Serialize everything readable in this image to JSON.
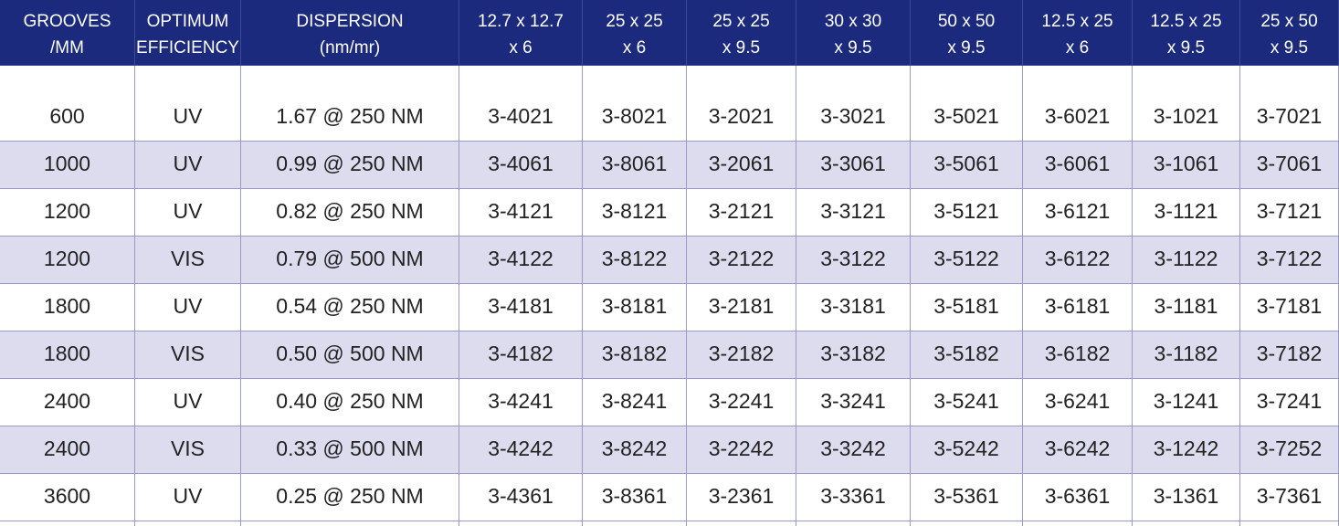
{
  "table": {
    "header": [
      [
        "GROOVES",
        "/MM"
      ],
      [
        "OPTIMUM",
        "EFFICIENCY"
      ],
      [
        "DISPERSION",
        "(nm/mr)"
      ],
      [
        "12.7 x 12.7",
        "x 6"
      ],
      [
        "25 x 25",
        "x 6"
      ],
      [
        "25 x 25",
        "x 9.5"
      ],
      [
        "30 x 30",
        "x 9.5"
      ],
      [
        "50 x 50",
        "x 9.5"
      ],
      [
        "12.5 x 25",
        "x 6"
      ],
      [
        "12.5 x 25",
        "x 9.5"
      ],
      [
        "25 x 50",
        "x 9.5"
      ]
    ],
    "rows": [
      [
        "600",
        "UV",
        "1.67 @ 250 NM",
        "3-4021",
        "3-8021",
        "3-2021",
        "3-3021",
        "3-5021",
        "3-6021",
        "3-1021",
        "3-7021"
      ],
      [
        "1000",
        "UV",
        "0.99 @ 250 NM",
        "3-4061",
        "3-8061",
        "3-2061",
        "3-3061",
        "3-5061",
        "3-6061",
        "3-1061",
        "3-7061"
      ],
      [
        "1200",
        "UV",
        "0.82 @ 250 NM",
        "3-4121",
        "3-8121",
        "3-2121",
        "3-3121",
        "3-5121",
        "3-6121",
        "3-1121",
        "3-7121"
      ],
      [
        "1200",
        "VIS",
        "0.79 @ 500 NM",
        "3-4122",
        "3-8122",
        "3-2122",
        "3-3122",
        "3-5122",
        "3-6122",
        "3-1122",
        "3-7122"
      ],
      [
        "1800",
        "UV",
        "0.54 @ 250 NM",
        "3-4181",
        "3-8181",
        "3-2181",
        "3-3181",
        "3-5181",
        "3-6181",
        "3-1181",
        "3-7181"
      ],
      [
        "1800",
        "VIS",
        "0.50 @ 500 NM",
        "3-4182",
        "3-8182",
        "3-2182",
        "3-3182",
        "3-5182",
        "3-6182",
        "3-1182",
        "3-7182"
      ],
      [
        "2400",
        "UV",
        "0.40 @ 250 NM",
        "3-4241",
        "3-8241",
        "3-2241",
        "3-3241",
        "3-5241",
        "3-6241",
        "3-1241",
        "3-7241"
      ],
      [
        "2400",
        "VIS",
        "0.33 @ 500 NM",
        "3-4242",
        "3-8242",
        "3-2242",
        "3-3242",
        "3-5242",
        "3-6242",
        "3-1242",
        "3-7252"
      ],
      [
        "3600",
        "UV",
        "0.25 @ 250 NM",
        "3-4361",
        "3-8361",
        "3-2361",
        "3-3361",
        "3-5361",
        "3-6361",
        "3-1361",
        "3-7361"
      ]
    ]
  }
}
